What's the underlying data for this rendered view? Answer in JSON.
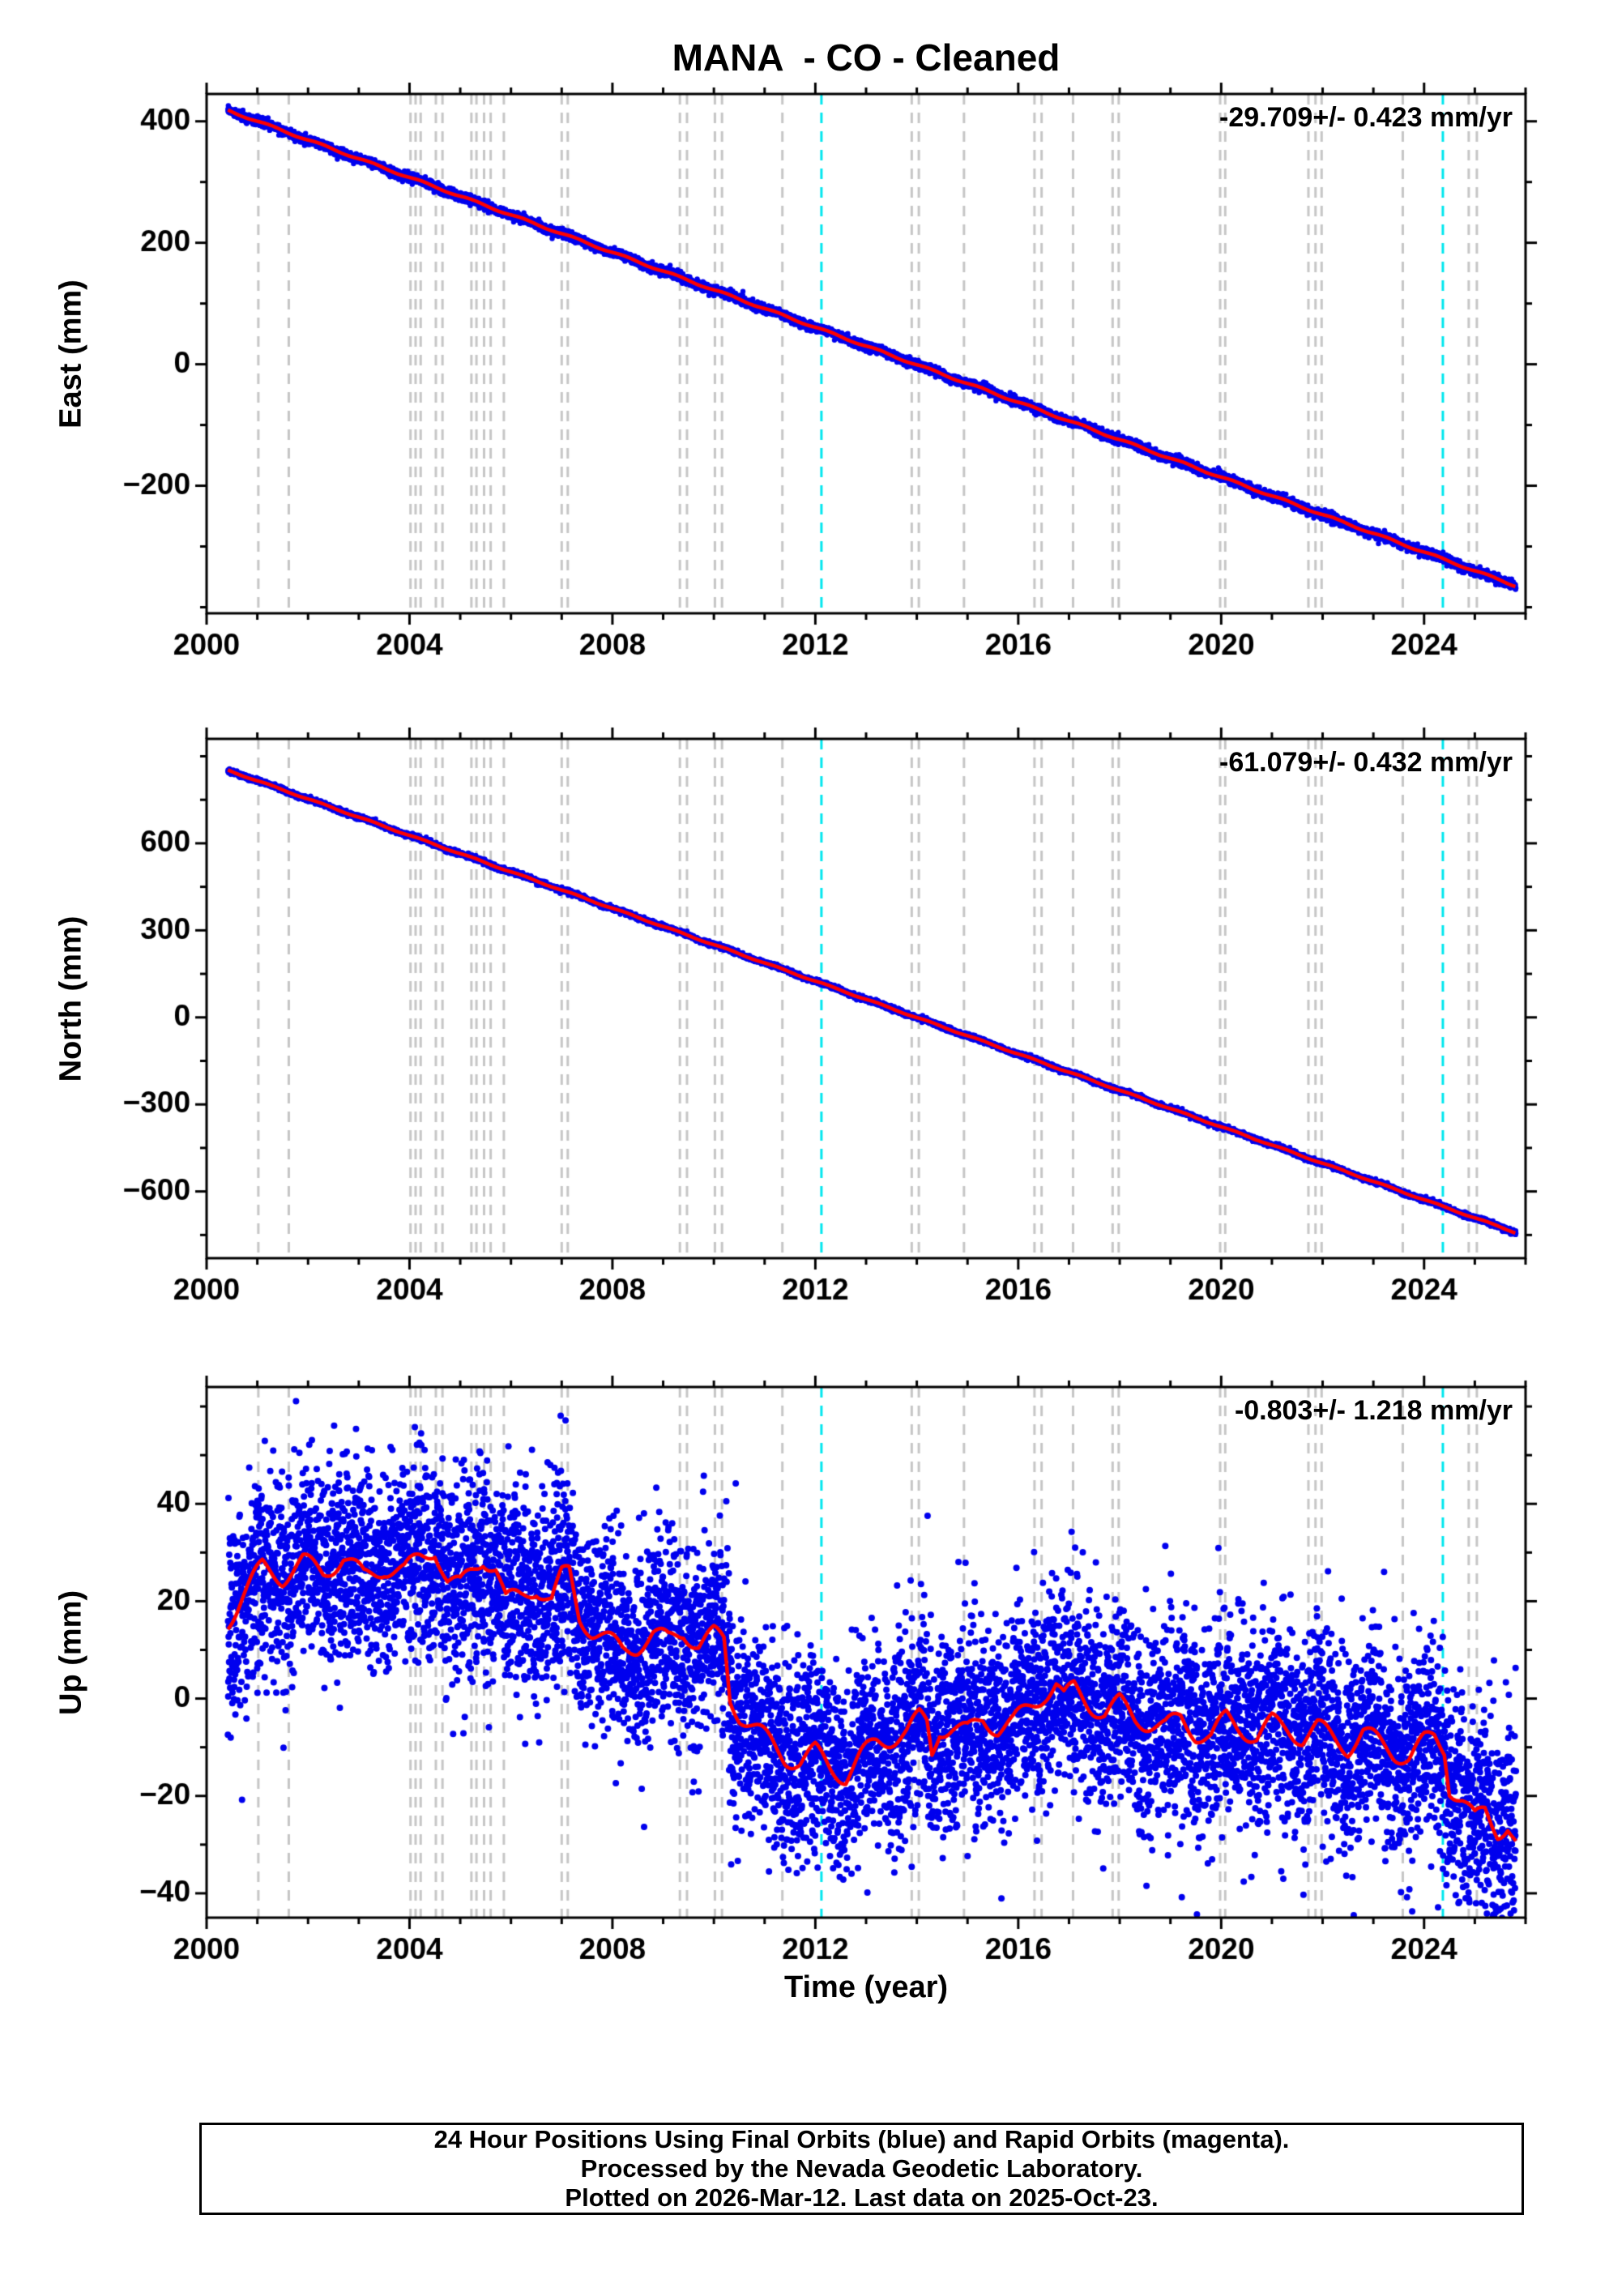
{
  "title": "MANA  - CO - Cleaned",
  "xlabel": "Time (year)",
  "footer": {
    "line1": "24 Hour Positions Using Final Orbits (blue) and Rapid Orbits (magenta).",
    "line2": "Processed by the Nevada Geodetic Laboratory.",
    "line3": "Plotted on 2026-Mar-12. Last data on 2025-Oct-23."
  },
  "colors": {
    "data_blue": "#0000ee",
    "model_red": "#ff0000",
    "event_gray": "#c6c6c6",
    "event_cyan": "#00e6ee",
    "frame_black": "#000000"
  },
  "events": {
    "gray_years": [
      2001.02,
      2001.62,
      2004.02,
      2004.12,
      2004.22,
      2004.52,
      2004.65,
      2005.22,
      2005.32,
      2005.47,
      2005.6,
      2005.86,
      2007.0,
      2007.12,
      2009.33,
      2009.47,
      2010.02,
      2010.16,
      2011.35,
      2013.9,
      2014.04,
      2014.93,
      2016.32,
      2016.46,
      2017.08,
      2017.86,
      2017.98,
      2019.98,
      2020.08,
      2021.72,
      2021.86,
      2021.98,
      2023.58,
      2024.88,
      2025.04
    ],
    "cyan_years": [
      2012.12,
      2024.37
    ]
  },
  "chart_data": [
    {
      "type": "scatter",
      "panel": "east",
      "ylabel": "East (mm)",
      "rate_label": "-29.709+/- 0.423 mm/yr",
      "xlim": [
        2000,
        2026
      ],
      "ylim": [
        -410,
        445
      ],
      "xticks": [
        2000,
        2004,
        2008,
        2012,
        2016,
        2020,
        2024
      ],
      "yticks": [
        -200,
        0,
        200,
        400
      ],
      "x_start": 2000.42,
      "x_end": 2025.81,
      "trend_start_mm": 418,
      "trend_end_mm": -365,
      "rate_mm_per_yr": -29.709,
      "noise_sigma_mm": 3.5,
      "seasonal_amp_mm": 1.5
    },
    {
      "type": "scatter",
      "panel": "north",
      "ylabel": "North (mm)",
      "rate_label": "-61.079+/- 0.432 mm/yr",
      "xlim": [
        2000,
        2026
      ],
      "ylim": [
        -830,
        960
      ],
      "xticks": [
        2000,
        2004,
        2008,
        2012,
        2016,
        2020,
        2024
      ],
      "yticks": [
        -600,
        -300,
        0,
        300,
        600
      ],
      "x_start": 2000.42,
      "x_end": 2025.81,
      "trend_start_mm": 852,
      "trend_end_mm": -742,
      "rate_mm_per_yr": -61.079,
      "noise_sigma_mm": 4,
      "seasonal_amp_mm": 2
    },
    {
      "type": "scatter",
      "panel": "up",
      "ylabel": "Up (mm)",
      "rate_label": "-0.803+/- 1.218 mm/yr",
      "xlim": [
        2000,
        2026
      ],
      "ylim": [
        -45,
        64
      ],
      "xticks": [
        2000,
        2004,
        2008,
        2012,
        2016,
        2020,
        2024
      ],
      "yticks": [
        -40,
        -20,
        0,
        20,
        40
      ],
      "x_start": 2000.42,
      "x_end": 2025.81,
      "rate_mm_per_yr": -0.803,
      "noise_sigma_mm": 10,
      "outlier_fraction": 0.02,
      "seasonal_amp_mm": 2,
      "model_points": [
        [
          2000.42,
          16
        ],
        [
          2000.7,
          21
        ],
        [
          2001.1,
          27
        ],
        [
          2001.5,
          25
        ],
        [
          2001.9,
          28
        ],
        [
          2002.3,
          26
        ],
        [
          2002.7,
          29
        ],
        [
          2003.1,
          25
        ],
        [
          2003.5,
          27
        ],
        [
          2003.9,
          26
        ],
        [
          2004.2,
          29
        ],
        [
          2004.5,
          31
        ],
        [
          2004.75,
          24
        ],
        [
          2005.0,
          23
        ],
        [
          2005.2,
          26
        ],
        [
          2005.45,
          29
        ],
        [
          2005.7,
          27
        ],
        [
          2005.9,
          20
        ],
        [
          2006.2,
          21
        ],
        [
          2006.5,
          23
        ],
        [
          2006.8,
          20
        ],
        [
          2007.0,
          25
        ],
        [
          2007.15,
          26
        ],
        [
          2007.35,
          17
        ],
        [
          2007.6,
          14
        ],
        [
          2007.9,
          12
        ],
        [
          2008.2,
          10
        ],
        [
          2008.5,
          11
        ],
        [
          2008.8,
          13
        ],
        [
          2009.1,
          12
        ],
        [
          2009.4,
          14
        ],
        [
          2009.7,
          11
        ],
        [
          2010.0,
          13
        ],
        [
          2010.2,
          12
        ],
        [
          2010.32,
          0
        ],
        [
          2010.5,
          -3
        ],
        [
          2010.8,
          -6
        ],
        [
          2011.1,
          -9
        ],
        [
          2011.4,
          -12
        ],
        [
          2011.7,
          -13
        ],
        [
          2012.0,
          -11
        ],
        [
          2012.3,
          -14
        ],
        [
          2012.6,
          -16
        ],
        [
          2012.9,
          -12
        ],
        [
          2013.2,
          -9
        ],
        [
          2013.5,
          -8
        ],
        [
          2013.8,
          -7
        ],
        [
          2014.05,
          -4
        ],
        [
          2014.2,
          -5
        ],
        [
          2014.3,
          -11
        ],
        [
          2014.45,
          -6
        ],
        [
          2014.7,
          -6
        ],
        [
          2015.0,
          -7
        ],
        [
          2015.3,
          -4
        ],
        [
          2015.6,
          -6
        ],
        [
          2015.9,
          -5
        ],
        [
          2016.2,
          -2
        ],
        [
          2016.5,
          1
        ],
        [
          2016.75,
          3
        ],
        [
          2016.9,
          0
        ],
        [
          2017.1,
          2
        ],
        [
          2017.4,
          -1
        ],
        [
          2017.7,
          -3
        ],
        [
          2018.0,
          -1
        ],
        [
          2018.3,
          -4
        ],
        [
          2018.6,
          -5
        ],
        [
          2018.9,
          -6
        ],
        [
          2019.2,
          -4
        ],
        [
          2019.5,
          -7
        ],
        [
          2019.8,
          -8
        ],
        [
          2020.1,
          -4
        ],
        [
          2020.4,
          -6
        ],
        [
          2020.7,
          -8
        ],
        [
          2021.0,
          -5
        ],
        [
          2021.3,
          -6
        ],
        [
          2021.6,
          -8
        ],
        [
          2021.9,
          -6
        ],
        [
          2022.2,
          -8
        ],
        [
          2022.5,
          -10
        ],
        [
          2022.8,
          -7
        ],
        [
          2023.1,
          -9
        ],
        [
          2023.4,
          -11
        ],
        [
          2023.7,
          -12
        ],
        [
          2024.0,
          -9
        ],
        [
          2024.2,
          -8
        ],
        [
          2024.4,
          -10
        ],
        [
          2024.5,
          -18
        ],
        [
          2024.75,
          -21
        ],
        [
          2025.0,
          -25
        ],
        [
          2025.2,
          -23
        ],
        [
          2025.45,
          -27
        ],
        [
          2025.65,
          -26
        ],
        [
          2025.81,
          -30
        ]
      ]
    }
  ]
}
